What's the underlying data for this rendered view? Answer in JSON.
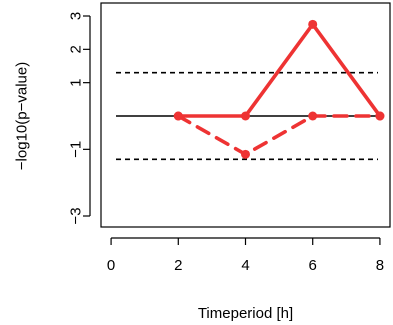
{
  "chart_data": {
    "type": "line",
    "title": "",
    "xlabel": "Timeperiod [h]",
    "ylabel": "−log10(p−value)",
    "xlim": [
      -0.3,
      8.3
    ],
    "ylim": [
      -3,
      3
    ],
    "x_ticks": [
      "0",
      "2",
      "4",
      "6",
      "8"
    ],
    "x_tick_values": [
      0,
      2,
      4,
      6,
      8
    ],
    "y_ticks": [
      "−3",
      "−1",
      "1",
      "2",
      "3"
    ],
    "y_tick_values": [
      -3,
      -1,
      1,
      2,
      3
    ],
    "grid": false,
    "box": true,
    "reference_lines": [
      {
        "y": 0,
        "style": "solid",
        "color": "#000000"
      },
      {
        "y": 1.3,
        "style": "dashed",
        "color": "#000000"
      },
      {
        "y": -1.3,
        "style": "dashed",
        "color": "#000000"
      }
    ],
    "series": [
      {
        "style": "solid",
        "color": "#ee3333",
        "x": [
          2,
          4,
          6,
          8
        ],
        "y": [
          0,
          0,
          2.75,
          0
        ]
      },
      {
        "style": "dashed",
        "color": "#ee3333",
        "x": [
          2,
          4,
          6,
          8
        ],
        "y": [
          0,
          -1.15,
          0,
          0
        ]
      }
    ]
  }
}
